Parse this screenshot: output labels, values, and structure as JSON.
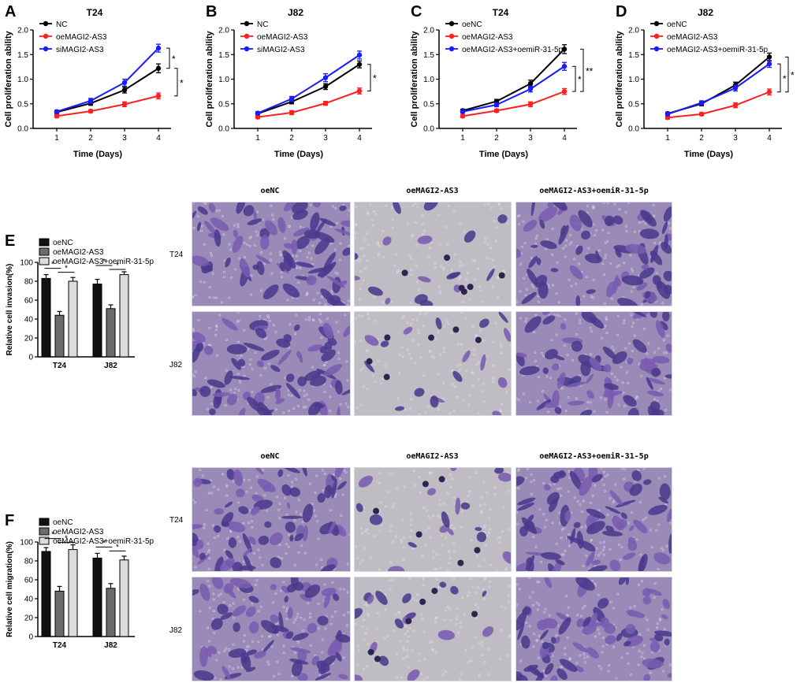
{
  "colors": {
    "nc": "#000000",
    "oe": "#ff2020",
    "si": "#1a1aff",
    "bar1": "#111111",
    "bar2": "#6b6b6b",
    "bar3": "#dcdcdc",
    "stain_dark": "#4a3a8c",
    "stain_mid": "#7a5cb0",
    "bg_heavy": "#9a8ab8",
    "bg_light": "#bfbcc3"
  },
  "line_charts": [
    {
      "label": "A",
      "title": "T24",
      "xlabel": "Time (Days)",
      "ylabel": "Cell proliferation ability",
      "type": "line",
      "x": [
        1,
        2,
        3,
        4
      ],
      "xticks": [
        "1",
        "2",
        "3",
        "4"
      ],
      "yticks": [
        "0.0",
        "0.5",
        "1.0",
        "1.5",
        "2.0"
      ],
      "ylim": [
        0,
        2.0
      ],
      "series": [
        {
          "name": "NC",
          "color": "#000000",
          "values": [
            0.33,
            0.51,
            0.78,
            1.22
          ],
          "err": [
            0.03,
            0.04,
            0.06,
            0.09
          ]
        },
        {
          "name": "oeMAGI2-AS3",
          "color": "#ff2020",
          "values": [
            0.25,
            0.35,
            0.49,
            0.66
          ],
          "err": [
            0.03,
            0.03,
            0.05,
            0.06
          ]
        },
        {
          "name": "siMAGI2-AS3",
          "color": "#1a1aff",
          "values": [
            0.34,
            0.56,
            0.93,
            1.63
          ],
          "err": [
            0.03,
            0.05,
            0.07,
            0.08
          ]
        }
      ],
      "sig": [
        "*",
        "*"
      ]
    },
    {
      "label": "B",
      "title": "J82",
      "xlabel": "Time (Days)",
      "ylabel": "Cell proliferation ability",
      "type": "line",
      "x": [
        1,
        2,
        3,
        4
      ],
      "xticks": [
        "1",
        "2",
        "3",
        "4"
      ],
      "yticks": [
        "0.0",
        "0.5",
        "1.0",
        "1.5",
        "2.0"
      ],
      "ylim": [
        0,
        2.0
      ],
      "series": [
        {
          "name": "NC",
          "color": "#000000",
          "values": [
            0.3,
            0.54,
            0.85,
            1.3
          ],
          "err": [
            0.03,
            0.04,
            0.06,
            0.07
          ]
        },
        {
          "name": "oeMAGI2-AS3",
          "color": "#ff2020",
          "values": [
            0.23,
            0.32,
            0.51,
            0.76
          ],
          "err": [
            0.03,
            0.04,
            0.04,
            0.06
          ]
        },
        {
          "name": "siMAGI2-AS3",
          "color": "#1a1aff",
          "values": [
            0.31,
            0.6,
            1.03,
            1.49
          ],
          "err": [
            0.03,
            0.05,
            0.08,
            0.08
          ]
        }
      ],
      "sig": [
        "*"
      ]
    },
    {
      "label": "C",
      "title": "T24",
      "xlabel": "Time (Days)",
      "ylabel": "Cell proliferation ability",
      "type": "line",
      "x": [
        1,
        2,
        3,
        4
      ],
      "xticks": [
        "1",
        "2",
        "3",
        "4"
      ],
      "yticks": [
        "0.0",
        "0.5",
        "1.0",
        "1.5",
        "2.0"
      ],
      "ylim": [
        0,
        2.0
      ],
      "series": [
        {
          "name": "oeNC",
          "color": "#000000",
          "values": [
            0.36,
            0.55,
            0.91,
            1.61
          ],
          "err": [
            0.03,
            0.04,
            0.07,
            0.09
          ]
        },
        {
          "name": "oeMAGI2-AS3",
          "color": "#ff2020",
          "values": [
            0.25,
            0.36,
            0.49,
            0.75
          ],
          "err": [
            0.03,
            0.03,
            0.05,
            0.06
          ]
        },
        {
          "name": "oeMAGI2-AS3+oemiR-31-5p",
          "color": "#1a1aff",
          "values": [
            0.34,
            0.48,
            0.8,
            1.26
          ],
          "err": [
            0.03,
            0.04,
            0.06,
            0.08
          ]
        }
      ],
      "sig": [
        "*",
        "**"
      ]
    },
    {
      "label": "D",
      "title": "J82",
      "xlabel": "Time (Days)",
      "ylabel": "Cell proliferation ability",
      "type": "line",
      "x": [
        1,
        2,
        3,
        4
      ],
      "xticks": [
        "1",
        "2",
        "3",
        "4"
      ],
      "yticks": [
        "0.0",
        "0.5",
        "1.0",
        "1.5",
        "2.0"
      ],
      "ylim": [
        0,
        2.0
      ],
      "series": [
        {
          "name": "oeNC",
          "color": "#000000",
          "values": [
            0.3,
            0.5,
            0.88,
            1.45
          ],
          "err": [
            0.03,
            0.04,
            0.06,
            0.08
          ]
        },
        {
          "name": "oeMAGI2-AS3",
          "color": "#ff2020",
          "values": [
            0.22,
            0.29,
            0.47,
            0.74
          ],
          "err": [
            0.03,
            0.03,
            0.05,
            0.06
          ]
        },
        {
          "name": "oeMAGI2-AS3+oemiR-31-5p",
          "color": "#1a1aff",
          "values": [
            0.29,
            0.52,
            0.82,
            1.31
          ],
          "err": [
            0.03,
            0.04,
            0.06,
            0.07
          ]
        }
      ],
      "sig": [
        "*",
        "*"
      ]
    }
  ],
  "bar_charts": [
    {
      "label": "E",
      "type": "bar",
      "ylabel": "Relative cell invasion(%)",
      "categories": [
        "T24",
        "J82"
      ],
      "yticks": [
        "0",
        "20",
        "40",
        "60",
        "80",
        "100"
      ],
      "ylim": [
        0,
        100
      ],
      "series": [
        {
          "name": "oeNC",
          "values": [
            83,
            77
          ],
          "err": [
            4,
            5
          ]
        },
        {
          "name": "oeMAGI2-AS3",
          "values": [
            44,
            51
          ],
          "err": [
            4,
            4
          ]
        },
        {
          "name": "oeMAGI2-AS3+oemiR-31-5p",
          "values": [
            80,
            87
          ],
          "err": [
            4,
            3
          ]
        }
      ],
      "sig": [
        "*",
        "*",
        "*",
        "*"
      ],
      "micro": {
        "titles": [
          "oeNC",
          "oeMAGI2-AS3",
          "oeMAGI2-AS3+oemiR-31-5p"
        ],
        "rows": [
          "T24",
          "J82"
        ]
      }
    },
    {
      "label": "F",
      "type": "bar",
      "ylabel": "Relative cell migration(%)",
      "categories": [
        "T24",
        "J82"
      ],
      "yticks": [
        "0",
        "20",
        "40",
        "60",
        "80",
        "100"
      ],
      "ylim": [
        0,
        100
      ],
      "series": [
        {
          "name": "oeNC",
          "values": [
            90,
            83
          ],
          "err": [
            4,
            5
          ]
        },
        {
          "name": "oeMAGI2-AS3",
          "values": [
            48,
            51
          ],
          "err": [
            5,
            5
          ]
        },
        {
          "name": "oeMAGI2-AS3+oemiR-31-5p",
          "values": [
            92,
            81
          ],
          "err": [
            5,
            4
          ]
        }
      ],
      "sig": [
        "*",
        "*",
        "*",
        "*"
      ],
      "micro": {
        "titles": [
          "oeNC",
          "oeMAGI2-AS3",
          "oeMAGI2-AS3+oemiR-31-5p"
        ],
        "rows": [
          "T24",
          "J82"
        ]
      }
    }
  ]
}
